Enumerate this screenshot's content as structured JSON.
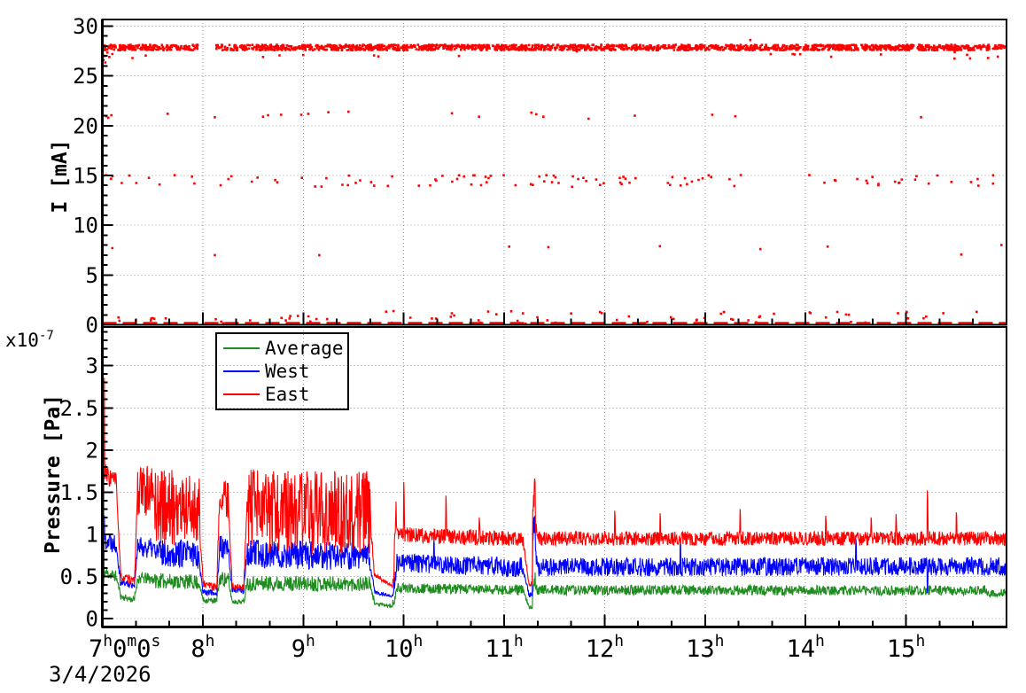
{
  "figure": {
    "date_label": "3/4/2026",
    "background": "#ffffff",
    "grid": "dotted"
  },
  "legend": {
    "position": "top-left-of-pressure-panel",
    "entries": [
      {
        "label": "Average",
        "color": "#1f8c1f"
      },
      {
        "label": "West",
        "color": "#0000ff"
      },
      {
        "label": "East",
        "color": "#ff0000"
      }
    ]
  },
  "x_axis": {
    "range_hours": [
      7,
      16
    ],
    "major_tick_hours": [
      7,
      8,
      9,
      10,
      11,
      12,
      13,
      14,
      15,
      16
    ],
    "minor_ticks_minutes": [
      20,
      40
    ],
    "first_label_parts": [
      [
        "7",
        "h"
      ],
      [
        "0",
        "m"
      ],
      [
        "0",
        "s"
      ]
    ],
    "hour_labels": [
      {
        "value": 8,
        "base": "8",
        "sup": "h"
      },
      {
        "value": 9,
        "base": "9",
        "sup": "h"
      },
      {
        "value": 10,
        "base": "10",
        "sup": "h"
      },
      {
        "value": 11,
        "base": "11",
        "sup": "h"
      },
      {
        "value": 12,
        "base": "12",
        "sup": "h"
      },
      {
        "value": 13,
        "base": "13",
        "sup": "h"
      },
      {
        "value": 14,
        "base": "14",
        "sup": "h"
      },
      {
        "value": 15,
        "base": "15",
        "sup": "h"
      }
    ]
  },
  "chart_data": [
    {
      "type": "scatter",
      "panel": "top",
      "ylabel": "I [mA]",
      "ylim": [
        0,
        30.6
      ],
      "yticks": [
        0,
        5,
        10,
        15,
        20,
        25,
        30
      ],
      "minor_step": 1,
      "marker_color": "#ff0000",
      "beam_gap_hours": [
        7.95,
        8.13
      ],
      "bands": {
        "main": {
          "level": 27.85,
          "spread": 0.55,
          "count": 1900
        },
        "mid": {
          "level": 14.45,
          "spread": 1.2,
          "count": 115
        },
        "zero": {
          "level": 0.05,
          "style": "thick-dashed-line"
        }
      },
      "start_stragglers": [
        [
          7.005,
          27.2
        ],
        [
          7.012,
          26.6
        ],
        [
          7.02,
          27.0
        ],
        [
          7.03,
          26.35
        ],
        [
          7.05,
          27.35
        ],
        [
          7.07,
          26.9
        ],
        [
          7.1,
          27.2
        ],
        [
          7.3,
          26.8
        ],
        [
          8.6,
          26.9
        ],
        [
          9.0,
          27.1
        ],
        [
          10.55,
          27.0
        ],
        [
          13.45,
          28.6
        ]
      ],
      "points_21": [
        [
          7.04,
          20.95
        ],
        [
          7.06,
          20.8
        ],
        [
          7.09,
          21.05
        ],
        [
          7.65,
          21.2
        ],
        [
          8.12,
          20.85
        ],
        [
          8.6,
          20.9
        ],
        [
          8.65,
          21.05
        ],
        [
          8.78,
          21.1
        ],
        [
          8.98,
          21.1
        ],
        [
          9.05,
          21.2
        ],
        [
          9.25,
          21.35
        ],
        [
          9.45,
          21.4
        ],
        [
          10.48,
          21.25
        ],
        [
          10.75,
          20.9
        ],
        [
          11.27,
          21.3
        ],
        [
          11.32,
          21.15
        ],
        [
          11.39,
          20.9
        ],
        [
          11.84,
          20.7
        ],
        [
          12.3,
          21.0
        ],
        [
          13.07,
          21.1
        ],
        [
          13.3,
          20.95
        ],
        [
          15.15,
          20.85
        ]
      ],
      "points_7": [
        [
          7.1,
          7.7
        ],
        [
          8.12,
          7.0
        ],
        [
          9.16,
          7.0
        ],
        [
          11.05,
          7.85
        ],
        [
          11.44,
          7.8
        ],
        [
          12.55,
          7.9
        ],
        [
          13.55,
          7.6
        ],
        [
          14.22,
          7.85
        ],
        [
          15.55,
          7.05
        ],
        [
          15.95,
          8.0
        ]
      ],
      "low_scatter": {
        "left_count": 22,
        "left_range_h": [
          7.0,
          9.5
        ],
        "right_count": 60,
        "right_range_h": [
          9.5,
          16.0
        ],
        "i_range": [
          0.1,
          1.4
        ]
      }
    },
    {
      "type": "line",
      "panel": "bottom",
      "ylabel": "Pressure [Pa]",
      "scale_label": "x10",
      "scale_exp": "-7",
      "ylim": [
        -0.1,
        3.46
      ],
      "yticks": [
        0,
        0.5,
        1,
        1.5,
        2,
        2.5,
        3
      ],
      "minor_step": 0.1,
      "series": [
        {
          "name": "Average",
          "color": "#1f8c1f",
          "seed": 11,
          "segments": [
            [
              7.0,
              7.02,
              0.42,
              0.5,
              0.22
            ],
            [
              7.02,
              7.14,
              0.55,
              0.5,
              0.07
            ],
            [
              7.14,
              7.18,
              0.48,
              0.3,
              0.04
            ],
            [
              7.18,
              7.32,
              0.26,
              0.22,
              0.04
            ],
            [
              7.32,
              7.35,
              0.24,
              0.45,
              0.05
            ],
            [
              7.35,
              7.52,
              0.48,
              0.47,
              0.07
            ],
            [
              7.52,
              7.97,
              0.45,
              0.43,
              0.09
            ],
            [
              7.97,
              8.0,
              0.36,
              0.25,
              0.04
            ],
            [
              8.0,
              8.14,
              0.22,
              0.21,
              0.035
            ],
            [
              8.14,
              8.17,
              0.24,
              0.48,
              0.06
            ],
            [
              8.17,
              8.26,
              0.48,
              0.45,
              0.09
            ],
            [
              8.26,
              8.29,
              0.4,
              0.23,
              0.04
            ],
            [
              8.29,
              8.41,
              0.2,
              0.2,
              0.03
            ],
            [
              8.41,
              8.44,
              0.22,
              0.45,
              0.06
            ],
            [
              8.44,
              9.67,
              0.42,
              0.41,
              0.09
            ],
            [
              9.67,
              9.71,
              0.35,
              0.2,
              0.04
            ],
            [
              9.71,
              9.89,
              0.18,
              0.14,
              0.018
            ],
            [
              9.89,
              9.93,
              0.16,
              0.33,
              0.06
            ],
            [
              9.93,
              11.19,
              0.36,
              0.34,
              0.06
            ],
            [
              11.19,
              11.25,
              0.33,
              0.12,
              0.025
            ],
            [
              11.25,
              11.28,
              0.12,
              0.14,
              0.03
            ],
            [
              11.28,
              11.31,
              0.32,
              0.5,
              0.08
            ],
            [
              11.31,
              11.33,
              0.42,
              0.35,
              0.05
            ],
            [
              11.33,
              15.8,
              0.34,
              0.33,
              0.06
            ],
            [
              15.8,
              16.0,
              0.3,
              0.3,
              0.05
            ]
          ],
          "spikes": []
        },
        {
          "name": "West",
          "color": "#0000ff",
          "seed": 22,
          "segments": [
            [
              7.0,
              7.02,
              0.7,
              0.75,
              0.6
            ],
            [
              7.02,
              7.14,
              0.95,
              0.9,
              0.13
            ],
            [
              7.14,
              7.18,
              0.88,
              0.45,
              0.06
            ],
            [
              7.18,
              7.32,
              0.43,
              0.4,
              0.045
            ],
            [
              7.32,
              7.35,
              0.42,
              0.8,
              0.06
            ],
            [
              7.35,
              7.52,
              0.85,
              0.83,
              0.12
            ],
            [
              7.52,
              7.97,
              0.79,
              0.76,
              0.17
            ],
            [
              7.97,
              8.0,
              0.6,
              0.34,
              0.05
            ],
            [
              8.0,
              8.14,
              0.32,
              0.3,
              0.04
            ],
            [
              8.14,
              8.17,
              0.35,
              0.85,
              0.08
            ],
            [
              8.17,
              8.26,
              0.85,
              0.8,
              0.15
            ],
            [
              8.26,
              8.29,
              0.7,
              0.37,
              0.05
            ],
            [
              8.29,
              8.41,
              0.34,
              0.33,
              0.035
            ],
            [
              8.41,
              8.44,
              0.36,
              0.8,
              0.08
            ],
            [
              8.44,
              9.67,
              0.77,
              0.73,
              0.17
            ],
            [
              9.67,
              9.71,
              0.6,
              0.33,
              0.05
            ],
            [
              9.71,
              9.89,
              0.31,
              0.27,
              0.02
            ],
            [
              9.89,
              9.93,
              0.3,
              0.6,
              0.1
            ],
            [
              9.93,
              11.19,
              0.66,
              0.61,
              0.115
            ],
            [
              11.19,
              11.25,
              0.58,
              0.27,
              0.03
            ],
            [
              11.25,
              11.28,
              0.27,
              0.3,
              0.04
            ],
            [
              11.28,
              11.31,
              0.95,
              1.3,
              0.18
            ],
            [
              11.31,
              11.33,
              0.8,
              0.63,
              0.08
            ],
            [
              11.33,
              16.0,
              0.61,
              0.62,
              0.11
            ]
          ],
          "spikes": [
            [
              10.3,
              0.95
            ],
            [
              12.75,
              0.92
            ],
            [
              14.5,
              0.95
            ],
            [
              15.21,
              0.3
            ]
          ]
        },
        {
          "name": "East",
          "color": "#ff0000",
          "seed": 33,
          "segments": [
            [
              7.0,
              7.02,
              2.0,
              1.9,
              1.5
            ],
            [
              7.02,
              7.14,
              1.72,
              1.62,
              0.13
            ],
            [
              7.14,
              7.18,
              1.6,
              0.55,
              0.06
            ],
            [
              7.18,
              7.32,
              0.5,
              0.44,
              0.05
            ],
            [
              7.32,
              7.35,
              0.45,
              1.5,
              0.08
            ],
            [
              7.35,
              7.52,
              1.52,
              1.5,
              0.3
            ],
            [
              7.52,
              7.97,
              1.32,
              1.3,
              0.45
            ],
            [
              7.97,
              8.0,
              1.0,
              0.45,
              0.1
            ],
            [
              8.0,
              8.14,
              0.42,
              0.36,
              0.045
            ],
            [
              8.14,
              8.17,
              0.4,
              1.5,
              0.1
            ],
            [
              8.17,
              8.26,
              1.45,
              1.4,
              0.22
            ],
            [
              8.26,
              8.29,
              1.3,
              0.42,
              0.08
            ],
            [
              8.29,
              8.41,
              0.38,
              0.37,
              0.04
            ],
            [
              8.41,
              8.44,
              0.4,
              1.45,
              0.1
            ],
            [
              8.44,
              9.67,
              1.27,
              1.25,
              0.5
            ],
            [
              9.67,
              9.71,
              1.1,
              0.54,
              0.08
            ],
            [
              9.71,
              9.89,
              0.52,
              0.38,
              0.025
            ],
            [
              9.89,
              9.93,
              0.45,
              1.3,
              0.25
            ],
            [
              9.93,
              11.19,
              1.0,
              0.94,
              0.09
            ],
            [
              11.19,
              11.25,
              0.9,
              0.38,
              0.04
            ],
            [
              11.25,
              11.28,
              0.38,
              0.44,
              0.04
            ],
            [
              11.28,
              11.31,
              1.35,
              1.52,
              0.18
            ],
            [
              11.31,
              11.33,
              1.1,
              0.95,
              0.1
            ],
            [
              11.33,
              16.0,
              0.95,
              0.95,
              0.085
            ]
          ],
          "spikes": [
            [
              10.0,
              1.62
            ],
            [
              10.42,
              1.46
            ],
            [
              10.75,
              1.2
            ],
            [
              12.1,
              1.28
            ],
            [
              12.55,
              1.25
            ],
            [
              13.35,
              1.3
            ],
            [
              14.2,
              1.22
            ],
            [
              14.65,
              1.2
            ],
            [
              14.9,
              1.24
            ],
            [
              15.21,
              1.52
            ],
            [
              15.5,
              1.26
            ]
          ]
        }
      ]
    }
  ]
}
